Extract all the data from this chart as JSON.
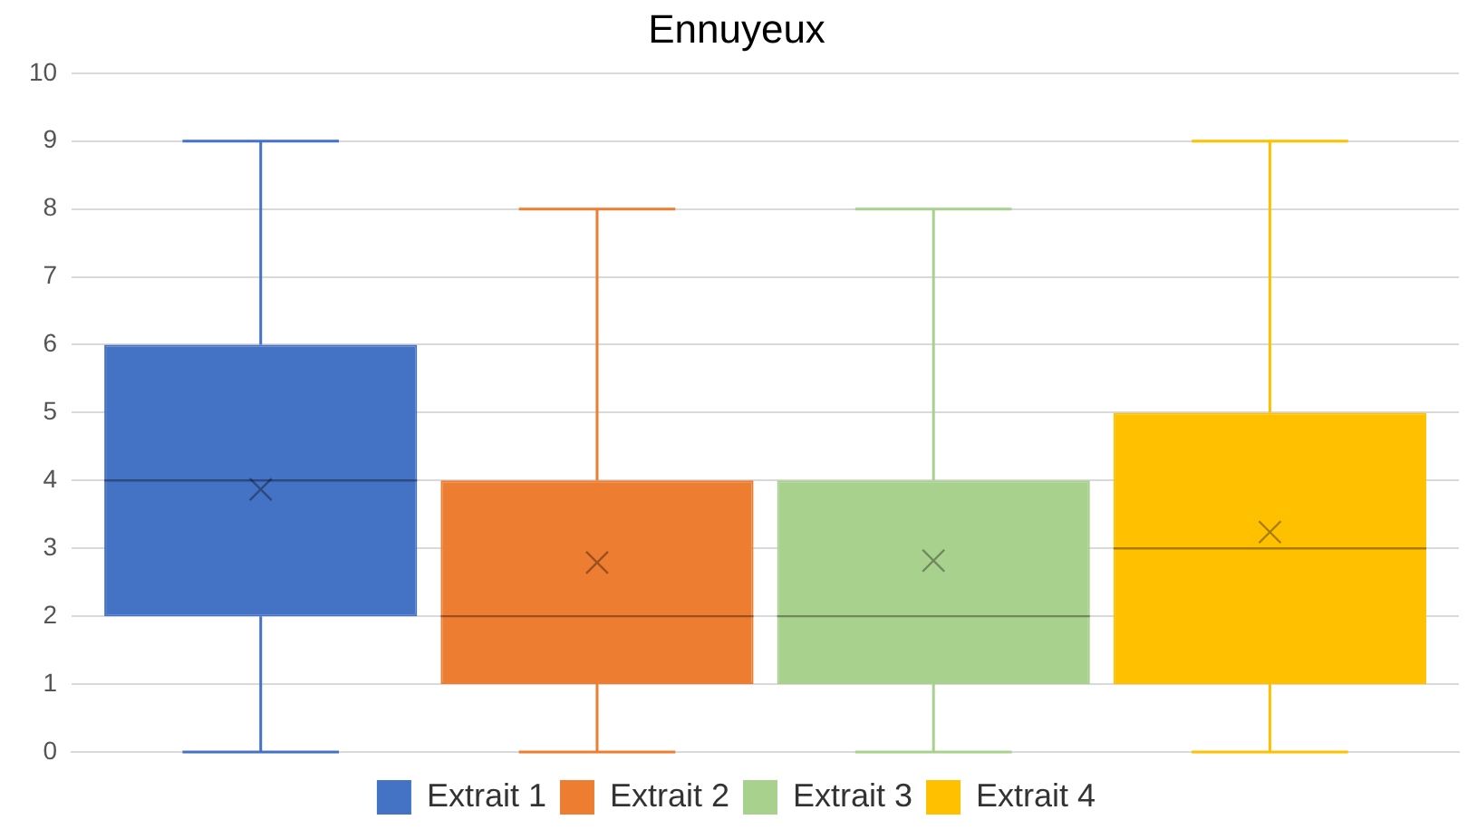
{
  "chart_data": {
    "type": "box",
    "title": "Ennuyeux",
    "categories": [
      null
    ],
    "series": [
      {
        "name": "Extrait 1",
        "color": "#4472c4",
        "boxes": [
          {
            "low": 0,
            "q1": 2,
            "median": 4,
            "q3": 6,
            "high": 9,
            "mean": 3.87
          }
        ]
      },
      {
        "name": "Extrait 2",
        "color": "#ed7d31",
        "boxes": [
          {
            "low": 0,
            "q1": 1,
            "median": 2,
            "q3": 4,
            "high": 8,
            "mean": 2.79
          }
        ]
      },
      {
        "name": "Extrait 3",
        "color": "#a9d18e",
        "boxes": [
          {
            "low": 0,
            "q1": 1,
            "median": 2,
            "q3": 4,
            "high": 8,
            "mean": 2.82
          }
        ]
      },
      {
        "name": "Extrait 4",
        "color": "#ffc000",
        "boxes": [
          {
            "low": 0,
            "q1": 1,
            "median": 3,
            "q3": 5,
            "high": 9,
            "mean": 3.24
          }
        ]
      }
    ],
    "ylim": [
      0,
      10
    ],
    "yticks": [
      0,
      1,
      2,
      3,
      4,
      5,
      6,
      7,
      8,
      9,
      10
    ],
    "grid": "y",
    "legend": "bottom",
    "marker": "cross",
    "tick_labels": "y"
  }
}
